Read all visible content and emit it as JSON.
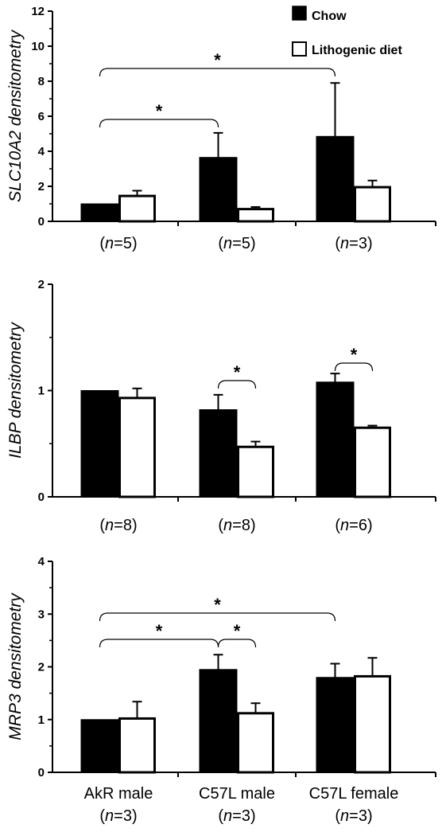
{
  "legend": {
    "series": [
      {
        "name": "Chow",
        "color": "#000000"
      },
      {
        "name": "Lithogenic diet",
        "color": "#ffffff"
      }
    ],
    "placement": "top-right"
  },
  "chart_data": [
    {
      "type": "bar",
      "ylabel_parts": [
        {
          "text": "SLC10A2",
          "italic": true
        },
        {
          "text": " densitometry",
          "italic": true
        }
      ],
      "ylim": [
        0,
        12
      ],
      "yticks": [
        "0",
        "2",
        "4",
        "6",
        "8",
        "10",
        "12"
      ],
      "group_labels": [
        {
          "pre": "(",
          "n": "n",
          "post": "=5)"
        },
        {
          "pre": "(",
          "n": "n",
          "post": "=5)"
        },
        {
          "pre": "(",
          "n": "n",
          "post": "=3)"
        }
      ],
      "series": [
        {
          "name": "Chow",
          "values": [
            1.0,
            3.65,
            4.85
          ],
          "errors": [
            0.0,
            1.4,
            3.05
          ]
        },
        {
          "name": "Lithogenic diet",
          "values": [
            1.45,
            0.7,
            1.95
          ],
          "errors": [
            0.3,
            0.12,
            0.38
          ]
        }
      ],
      "significance": [
        {
          "from": [
            0,
            0
          ],
          "to": [
            1,
            0
          ],
          "label": "*"
        },
        {
          "from": [
            0,
            0
          ],
          "to": [
            2,
            0
          ],
          "label": "*"
        }
      ]
    },
    {
      "type": "bar",
      "ylabel_parts": [
        {
          "text": "ILBP",
          "italic": true
        },
        {
          "text": " densitometry",
          "italic": true
        }
      ],
      "ylim": [
        0,
        2
      ],
      "yticks": [
        "0",
        "1",
        "2"
      ],
      "group_labels": [
        {
          "pre": "(",
          "n": "n",
          "post": "=8)"
        },
        {
          "pre": "(",
          "n": "n",
          "post": "=8)"
        },
        {
          "pre": "(",
          "n": "n",
          "post": "=6)"
        }
      ],
      "series": [
        {
          "name": "Chow",
          "values": [
            1.0,
            0.82,
            1.08
          ],
          "errors": [
            0.0,
            0.14,
            0.08
          ]
        },
        {
          "name": "Lithogenic diet",
          "values": [
            0.93,
            0.47,
            0.65
          ],
          "errors": [
            0.09,
            0.05,
            0.02
          ]
        }
      ],
      "significance": [
        {
          "from": [
            1,
            0
          ],
          "to": [
            1,
            1
          ],
          "label": "*"
        },
        {
          "from": [
            2,
            0
          ],
          "to": [
            2,
            1
          ],
          "label": "*"
        }
      ]
    },
    {
      "type": "bar",
      "ylabel_parts": [
        {
          "text": "MRP3",
          "italic": true
        },
        {
          "text": " densitometry",
          "italic": true
        }
      ],
      "ylim": [
        0,
        4
      ],
      "yticks": [
        "0",
        "1",
        "2",
        "3",
        "4"
      ],
      "categories": [
        "AkR male",
        "C57L male",
        "C57L female"
      ],
      "group_labels": [
        {
          "pre": "(",
          "n": "n",
          "post": "=3)"
        },
        {
          "pre": "(",
          "n": "n",
          "post": "=3)"
        },
        {
          "pre": "(",
          "n": "n",
          "post": "=3)"
        }
      ],
      "series": [
        {
          "name": "Chow",
          "values": [
            1.0,
            1.95,
            1.8
          ],
          "errors": [
            0.0,
            0.28,
            0.26
          ]
        },
        {
          "name": "Lithogenic diet",
          "values": [
            1.02,
            1.12,
            1.82
          ],
          "errors": [
            0.32,
            0.19,
            0.35
          ]
        }
      ],
      "significance": [
        {
          "from": [
            0,
            0
          ],
          "to": [
            1,
            0
          ],
          "label": "*"
        },
        {
          "from": [
            1,
            0
          ],
          "to": [
            1,
            1
          ],
          "label": "*"
        },
        {
          "from": [
            0,
            0
          ],
          "to": [
            2,
            0
          ],
          "label": "*"
        }
      ]
    }
  ]
}
